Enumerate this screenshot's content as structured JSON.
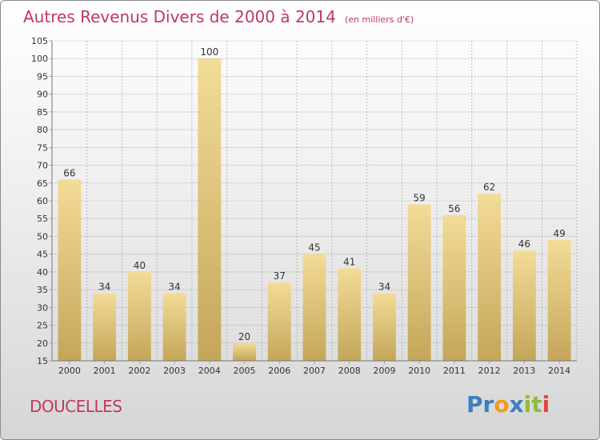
{
  "header": {
    "title": "Autres Revenus Divers de 2000 à 2014",
    "subtitle": "(en milliers d'€)"
  },
  "place": {
    "name": "DOUCELLES"
  },
  "brand": {
    "text": "Proxiti",
    "letters": [
      {
        "ch": "P",
        "color": "#3d7fc1"
      },
      {
        "ch": "r",
        "color": "#3d7fc1"
      },
      {
        "ch": "o",
        "color": "#f39a1e"
      },
      {
        "ch": "x",
        "color": "#3d7fc1"
      },
      {
        "ch": "i",
        "color": "#8cbd3a"
      },
      {
        "ch": "t",
        "color": "#8cbd3a"
      },
      {
        "ch": "i",
        "color": "#e04545"
      }
    ]
  },
  "colors": {
    "accent": "#c0395a",
    "bar_light": "#f3dc97",
    "bar_dark": "#c4a65a",
    "grid": "#9a9a9a",
    "text": "#333333"
  },
  "chart_data": {
    "type": "bar",
    "categories": [
      "2000",
      "2001",
      "2002",
      "2003",
      "2004",
      "2005",
      "2006",
      "2007",
      "2008",
      "2009",
      "2010",
      "2011",
      "2012",
      "2013",
      "2014"
    ],
    "values": [
      66,
      34,
      40,
      34,
      100,
      20,
      37,
      45,
      41,
      34,
      59,
      56,
      62,
      46,
      49
    ],
    "data_labels": [
      "66",
      "34",
      "40",
      "34",
      "100",
      "20",
      "37",
      "45",
      "41",
      "34",
      "59",
      "56",
      "62",
      "46",
      "49"
    ],
    "ylim": [
      15,
      105
    ],
    "yticks": [
      15,
      20,
      25,
      30,
      35,
      40,
      45,
      50,
      55,
      60,
      65,
      70,
      75,
      80,
      85,
      90,
      95,
      100,
      105
    ],
    "grid": true
  }
}
